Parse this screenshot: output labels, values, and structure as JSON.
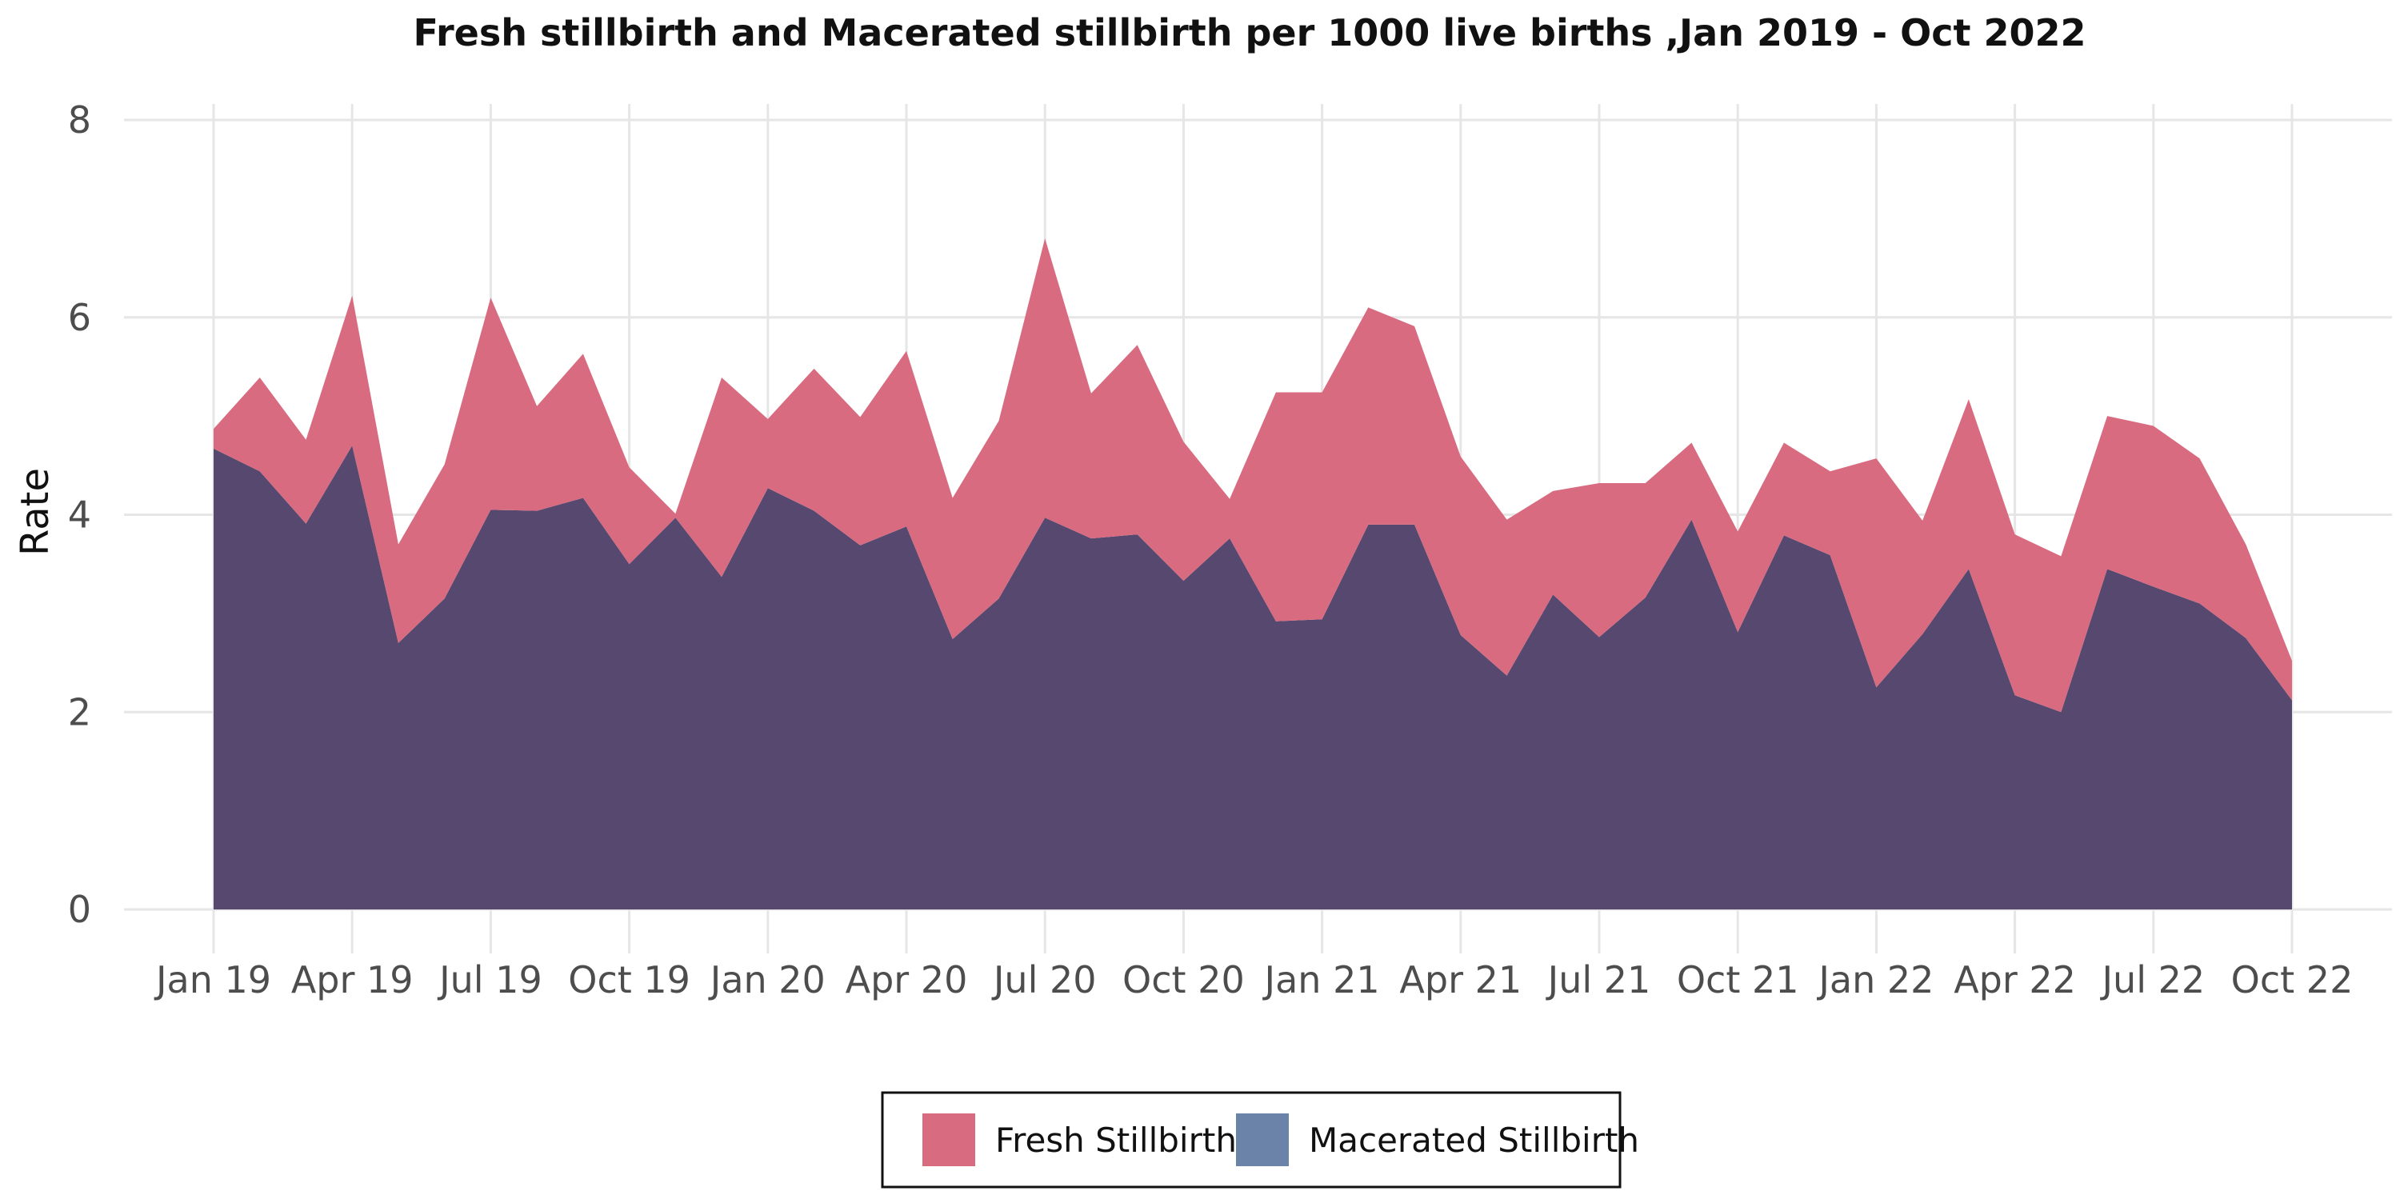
{
  "chart_data": {
    "type": "area",
    "stacked": true,
    "title": "Fresh stillbirth and Macerated stillbirth per 1000 live births ,Jan 2019 - Oct 2022",
    "xlabel": "",
    "ylabel": "Rate",
    "ylim": [
      0,
      8
    ],
    "yticks": [
      0,
      2,
      4,
      6,
      8
    ],
    "x": [
      "2019-01",
      "2019-02",
      "2019-03",
      "2019-04",
      "2019-05",
      "2019-06",
      "2019-07",
      "2019-08",
      "2019-09",
      "2019-10",
      "2019-11",
      "2019-12",
      "2020-01",
      "2020-02",
      "2020-03",
      "2020-04",
      "2020-05",
      "2020-06",
      "2020-07",
      "2020-08",
      "2020-09",
      "2020-10",
      "2020-11",
      "2020-12",
      "2021-01",
      "2021-02",
      "2021-03",
      "2021-04",
      "2021-05",
      "2021-06",
      "2021-07",
      "2021-08",
      "2021-09",
      "2021-10",
      "2021-11",
      "2021-12",
      "2022-01",
      "2022-02",
      "2022-03",
      "2022-04",
      "2022-05",
      "2022-06",
      "2022-07",
      "2022-08",
      "2022-09",
      "2022-10"
    ],
    "xticks": [
      {
        "index": 0,
        "label": "Jan 19"
      },
      {
        "index": 3,
        "label": "Apr 19"
      },
      {
        "index": 6,
        "label": "Jul 19"
      },
      {
        "index": 9,
        "label": "Oct 19"
      },
      {
        "index": 12,
        "label": "Jan 20"
      },
      {
        "index": 15,
        "label": "Apr 20"
      },
      {
        "index": 18,
        "label": "Jul 20"
      },
      {
        "index": 21,
        "label": "Oct 20"
      },
      {
        "index": 24,
        "label": "Jan 21"
      },
      {
        "index": 27,
        "label": "Apr 21"
      },
      {
        "index": 30,
        "label": "Jul 21"
      },
      {
        "index": 33,
        "label": "Oct 21"
      },
      {
        "index": 36,
        "label": "Jan 22"
      },
      {
        "index": 39,
        "label": "Apr 22"
      },
      {
        "index": 42,
        "label": "Jul 22"
      },
      {
        "index": 45,
        "label": "Oct 22"
      }
    ],
    "grid": true,
    "legend_position": "bottom",
    "series": [
      {
        "name": "Macerated Stillbirth",
        "color": "#56486f",
        "legend_color": "#6b83a9",
        "values": [
          4.67,
          4.44,
          3.91,
          4.7,
          2.7,
          3.15,
          4.05,
          4.04,
          4.17,
          3.5,
          3.97,
          3.37,
          4.27,
          4.04,
          3.69,
          3.88,
          2.74,
          3.15,
          3.97,
          3.76,
          3.8,
          3.33,
          3.76,
          2.92,
          2.94,
          3.9,
          3.9,
          2.78,
          2.37,
          3.19,
          2.76,
          3.16,
          3.95,
          2.81,
          3.79,
          3.59,
          2.25,
          2.79,
          3.45,
          2.17,
          2.0,
          3.45,
          3.27,
          3.1,
          2.75,
          2.12
        ]
      },
      {
        "name": "Fresh Stillbirth",
        "color": "#d86b80",
        "legend_color": "#d86b80",
        "values": [
          0.2,
          0.95,
          0.85,
          1.52,
          1.0,
          1.36,
          2.15,
          1.06,
          1.46,
          0.98,
          0.04,
          2.02,
          0.7,
          1.44,
          1.3,
          1.78,
          1.43,
          1.8,
          2.83,
          1.47,
          1.92,
          1.41,
          0.4,
          2.32,
          2.3,
          2.2,
          2.01,
          1.81,
          1.58,
          1.05,
          1.56,
          1.16,
          0.78,
          1.02,
          0.94,
          0.85,
          2.32,
          1.15,
          1.72,
          1.63,
          1.58,
          1.55,
          1.63,
          1.47,
          0.95,
          0.4
        ]
      }
    ]
  }
}
